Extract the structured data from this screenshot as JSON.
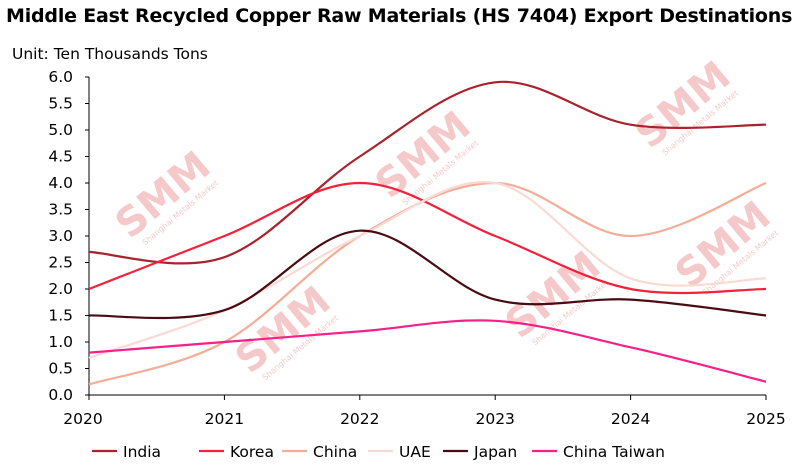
{
  "watermark": {
    "logo": "SMM",
    "sub": "Shanghai Metals Market"
  },
  "chart_data": {
    "type": "line",
    "title": "Middle East Recycled Copper Raw Materials (HS 7404) Export Destinations",
    "ylabel": "Unit: Ten Thousands Tons",
    "xlabel": "",
    "categories": [
      "2020",
      "2021",
      "2022",
      "2023",
      "2024",
      "2025"
    ],
    "ylim": [
      0,
      6
    ],
    "yticks": [
      "0.0",
      "0.5",
      "1.0",
      "1.5",
      "2.0",
      "2.5",
      "3.0",
      "3.5",
      "4.0",
      "4.5",
      "5.0",
      "5.5",
      "6.0"
    ],
    "grid": false,
    "smooth": true,
    "legend_position": "bottom",
    "series": [
      {
        "name": "India",
        "color": "#A8232D",
        "values": [
          2.7,
          2.6,
          4.5,
          5.9,
          5.1,
          5.1
        ]
      },
      {
        "name": "Korea",
        "color": "#F5203A",
        "values": [
          2.0,
          3.0,
          4.0,
          3.0,
          2.0,
          2.0
        ]
      },
      {
        "name": "China",
        "color": "#F3AD98",
        "values": [
          0.2,
          1.0,
          3.0,
          4.0,
          3.0,
          4.0
        ]
      },
      {
        "name": "UAE",
        "color": "#FADAD4",
        "values": [
          0.7,
          1.6,
          3.0,
          4.0,
          2.2,
          2.2
        ]
      },
      {
        "name": "Japan",
        "color": "#480C12",
        "values": [
          1.5,
          1.6,
          3.1,
          1.8,
          1.8,
          1.5
        ]
      },
      {
        "name": "China Taiwan",
        "color": "#F7208A",
        "values": [
          0.8,
          1.0,
          1.2,
          1.4,
          0.9,
          0.25
        ]
      }
    ]
  }
}
